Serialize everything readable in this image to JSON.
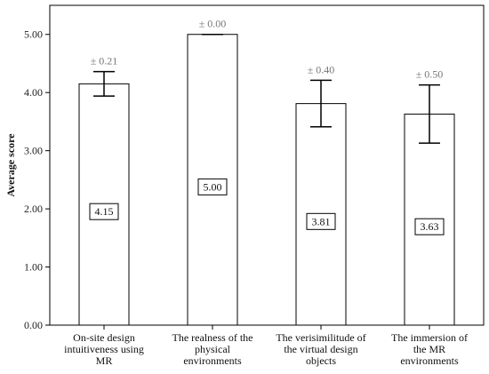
{
  "chart_data": {
    "type": "bar",
    "ylabel": "Average score",
    "xlabel": "",
    "ylim": [
      0,
      5.5
    ],
    "yticks": [
      "0.00",
      "1.00",
      "2.00",
      "3.00",
      "4.00",
      "5.00"
    ],
    "grid": false,
    "categories": [
      [
        "On-site design",
        "intuitiveness using",
        "MR"
      ],
      [
        "The realness of the",
        "physical",
        "environments"
      ],
      [
        "The verisimilitude of",
        "the virtual design",
        "objects"
      ],
      [
        "The immersion of",
        "the MR",
        "environments"
      ]
    ],
    "values": [
      4.15,
      5.0,
      3.81,
      3.63
    ],
    "value_labels": [
      "4.15",
      "5.00",
      "3.81",
      "3.63"
    ],
    "errors": [
      0.21,
      0.0,
      0.4,
      0.5
    ],
    "error_labels": [
      "± 0.21",
      "± 0.00",
      "± 0.40",
      "± 0.50"
    ],
    "colors": {
      "bar_fill": "#ffffff",
      "bar_stroke": "#000000",
      "error_text": "#777777"
    }
  }
}
